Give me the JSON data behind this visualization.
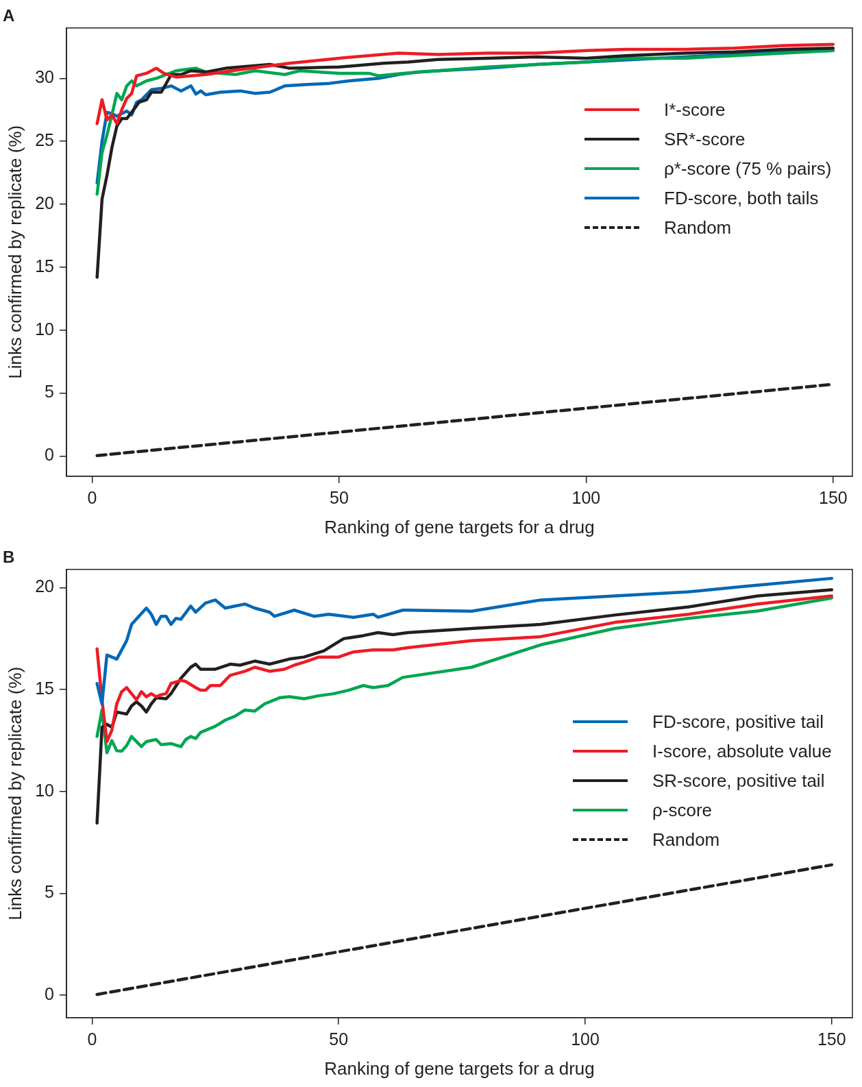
{
  "chart_data": [
    {
      "type": "line",
      "title": "A",
      "xlabel": "Ranking of gene targets for a drug",
      "ylabel": "Links confirmed by replicate (%)",
      "xlim": [
        -5.2,
        153.9
      ],
      "ylim": [
        -1.6,
        34
      ],
      "xticks": [
        0,
        50,
        100,
        150
      ],
      "yticks": [
        0,
        5,
        10,
        15,
        20,
        25,
        30
      ],
      "grid": false,
      "legend": "top right",
      "marker": "none",
      "series": [
        {
          "name": "I*-score",
          "color": "#ed1c24",
          "x": [
            1,
            2,
            3,
            4,
            5,
            6,
            7,
            8,
            9,
            11,
            13,
            14.5,
            17,
            23,
            30,
            40,
            50,
            62,
            70,
            80,
            90,
            100,
            108,
            120,
            130,
            140,
            150
          ],
          "values": [
            26.4,
            28.3,
            26.7,
            27.1,
            26.4,
            27.5,
            28.4,
            28.8,
            30.2,
            30.4,
            30.8,
            30.4,
            30.1,
            30.3,
            30.7,
            31.2,
            31.6,
            32.0,
            31.9,
            32.0,
            32.0,
            32.2,
            32.3,
            32.3,
            32.4,
            32.6,
            32.7
          ]
        },
        {
          "name": "SR*-score",
          "color": "#231f20",
          "x": [
            1,
            2,
            3,
            4,
            5,
            6,
            7,
            8,
            9.5,
            11,
            12,
            14,
            16,
            18,
            20,
            23,
            27,
            36,
            40,
            50,
            59,
            64,
            70,
            80,
            90,
            100,
            108,
            120,
            130,
            140,
            150
          ],
          "values": [
            14.2,
            20.4,
            22.3,
            24.5,
            26.2,
            26.8,
            26.8,
            27.3,
            28.1,
            28.3,
            28.9,
            28.9,
            30.3,
            30.3,
            30.6,
            30.5,
            30.8,
            31.1,
            30.8,
            30.9,
            31.2,
            31.3,
            31.5,
            31.6,
            31.7,
            31.6,
            31.8,
            32.0,
            32.1,
            32.3,
            32.4
          ]
        },
        {
          "name": "ρ*-score (75 % pairs)",
          "color": "#00a651",
          "x": [
            1,
            2,
            3,
            4,
            5,
            6,
            7,
            8,
            9,
            11,
            13,
            17,
            21,
            23,
            29,
            33,
            39,
            42,
            50,
            56,
            58,
            63,
            70,
            80,
            90,
            100,
            108,
            120,
            130,
            140,
            150
          ],
          "values": [
            20.8,
            24.1,
            25.5,
            27.1,
            28.8,
            28.3,
            29.4,
            29.8,
            29.4,
            29.8,
            30.0,
            30.6,
            30.8,
            30.5,
            30.3,
            30.6,
            30.3,
            30.6,
            30.4,
            30.4,
            30.2,
            30.4,
            30.6,
            30.9,
            31.1,
            31.3,
            31.6,
            31.6,
            31.8,
            32.0,
            32.2
          ]
        },
        {
          "name": "FD-score, both tails",
          "color": "#0068b7",
          "x": [
            1,
            2,
            3,
            4,
            5,
            6,
            7,
            8,
            9,
            10,
            12,
            14,
            16,
            18,
            20,
            21,
            22,
            23,
            26,
            30,
            33,
            36,
            39,
            43,
            48,
            52,
            58,
            62,
            66,
            70,
            80,
            90,
            100,
            110,
            120,
            130,
            140,
            150
          ],
          "values": [
            21.7,
            25.0,
            27.3,
            27.2,
            27.0,
            27.2,
            27.4,
            27.1,
            28.1,
            28.3,
            29.1,
            29.2,
            29.4,
            29.0,
            29.4,
            28.75,
            29.0,
            28.7,
            28.9,
            29.0,
            28.8,
            28.9,
            29.4,
            29.5,
            29.6,
            29.8,
            30.0,
            30.3,
            30.5,
            30.6,
            30.8,
            31.1,
            31.3,
            31.5,
            31.7,
            31.9,
            32.1,
            32.2
          ]
        },
        {
          "name": "Random",
          "color": "#231f20",
          "line_style": "dashed",
          "x": [
            1,
            150
          ],
          "values": [
            0.04,
            5.7
          ]
        }
      ]
    },
    {
      "type": "line",
      "title": "B",
      "xlabel": "Ranking of gene targets for a drug",
      "ylabel": "Links confirmed by replicate (%)",
      "xlim": [
        -5.2,
        154.2
      ],
      "ylim": [
        -1.1,
        20.9
      ],
      "xticks": [
        0,
        50,
        100,
        150
      ],
      "yticks": [
        0,
        5,
        10,
        15,
        20
      ],
      "grid": false,
      "legend": "right",
      "marker": "none",
      "series": [
        {
          "name": "FD-score, positive tail",
          "color": "#0068b7",
          "x": [
            1,
            2,
            3,
            5,
            7,
            8,
            11,
            12,
            13,
            14,
            15,
            16,
            17,
            18,
            20,
            21,
            23,
            25,
            27,
            29,
            31,
            33,
            36,
            37,
            41,
            45,
            48,
            53,
            57,
            58,
            63,
            64,
            77,
            91,
            106,
            121,
            132,
            150
          ],
          "values": [
            15.3,
            14.3,
            16.7,
            16.5,
            17.4,
            18.2,
            19.0,
            18.7,
            18.2,
            18.6,
            18.6,
            18.2,
            18.5,
            18.45,
            19.1,
            18.8,
            19.25,
            19.4,
            19.0,
            19.1,
            19.2,
            19.0,
            18.8,
            18.6,
            18.9,
            18.6,
            18.7,
            18.55,
            18.7,
            18.55,
            18.9,
            18.9,
            18.85,
            19.4,
            19.6,
            19.8,
            20.06,
            20.46
          ]
        },
        {
          "name": "I-score, absolute value",
          "color": "#ed1c24",
          "x": [
            1,
            2,
            3,
            4,
            5,
            6,
            7,
            8,
            9,
            10,
            11,
            12,
            13,
            14,
            15,
            16,
            18,
            19,
            21,
            22,
            23,
            24,
            26,
            28,
            31,
            33,
            36,
            39,
            41,
            43,
            46,
            48,
            50,
            53,
            57,
            61,
            64,
            77,
            91,
            106,
            121,
            135,
            150
          ],
          "values": [
            17.0,
            14.5,
            12.45,
            13.0,
            14.3,
            14.9,
            15.1,
            14.8,
            14.5,
            14.9,
            14.65,
            14.8,
            14.65,
            14.75,
            14.8,
            15.3,
            15.45,
            15.4,
            15.1,
            14.97,
            14.97,
            15.2,
            15.2,
            15.7,
            15.9,
            16.1,
            15.9,
            16.0,
            16.2,
            16.35,
            16.6,
            16.6,
            16.6,
            16.85,
            16.95,
            16.95,
            17.06,
            17.4,
            17.6,
            18.3,
            18.7,
            19.2,
            19.6
          ]
        },
        {
          "name": "SR-score, positive tail",
          "color": "#231f20",
          "x": [
            1,
            2,
            3,
            4,
            5,
            7,
            8,
            9,
            10,
            11,
            12,
            13,
            15,
            16,
            18,
            20,
            21,
            22,
            25,
            28,
            30,
            33,
            36,
            40,
            43,
            47,
            51,
            55,
            58,
            61,
            64,
            77,
            91,
            106,
            121,
            135,
            150
          ],
          "values": [
            8.45,
            13.15,
            13.3,
            13.15,
            13.9,
            13.8,
            14.2,
            14.4,
            14.2,
            13.9,
            14.3,
            14.6,
            14.55,
            14.8,
            15.55,
            16.1,
            16.25,
            16.0,
            16.0,
            16.25,
            16.2,
            16.4,
            16.25,
            16.5,
            16.6,
            16.9,
            17.5,
            17.65,
            17.8,
            17.7,
            17.8,
            18.0,
            18.2,
            18.66,
            19.06,
            19.6,
            19.9
          ]
        },
        {
          "name": "ρ-score",
          "color": "#00a651",
          "x": [
            1,
            2,
            3,
            4,
            5,
            6,
            7,
            8,
            10,
            11,
            13,
            14,
            16,
            18,
            19,
            20,
            21,
            22,
            25,
            27,
            29,
            31,
            33,
            35,
            38,
            40,
            43,
            46,
            49,
            52,
            55,
            57,
            60,
            63,
            77,
            91,
            106,
            121,
            135,
            150
          ],
          "values": [
            12.7,
            14.0,
            11.9,
            12.5,
            12.0,
            11.98,
            12.25,
            12.7,
            12.2,
            12.45,
            12.55,
            12.3,
            12.35,
            12.2,
            12.55,
            12.7,
            12.6,
            12.9,
            13.2,
            13.5,
            13.7,
            14.0,
            13.95,
            14.3,
            14.6,
            14.65,
            14.55,
            14.7,
            14.8,
            14.97,
            15.2,
            15.1,
            15.2,
            15.6,
            16.1,
            17.2,
            18.0,
            18.5,
            18.86,
            19.5
          ]
        },
        {
          "name": "Random",
          "color": "#231f20",
          "line_style": "dashed",
          "x": [
            1,
            150
          ],
          "values": [
            0.04,
            6.4
          ]
        }
      ]
    }
  ]
}
